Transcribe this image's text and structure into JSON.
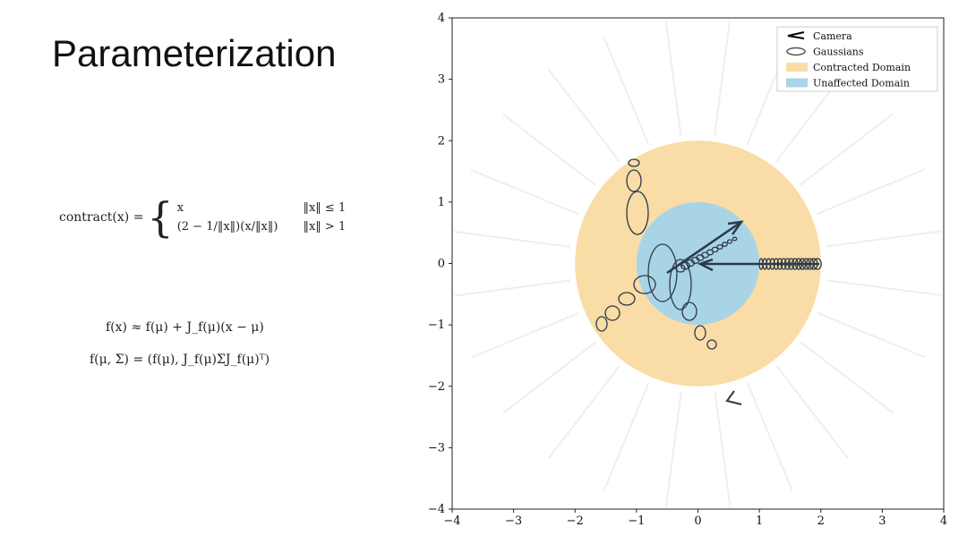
{
  "slide": {
    "title": "Parameterization",
    "equations": {
      "contract_lhs": "contract(x) =",
      "case1": "x",
      "cond1": "‖x‖ ≤ 1",
      "case2": "(2 − 1/‖x‖)(x/‖x‖)",
      "cond2": "‖x‖ > 1",
      "taylor": "f(x) ≈ f(μ) + J_f(μ)(x − μ)",
      "gaussian": "f(μ, Σ) = (f(μ), J_f(μ)ΣJ_f(μ)ᵀ)"
    }
  },
  "chart_data": {
    "type": "domain-plot",
    "xlim": [
      -4,
      4
    ],
    "ylim": [
      -4,
      4
    ],
    "xticks": [
      {
        "value": -4,
        "label": "−4"
      },
      {
        "value": -3,
        "label": "−3"
      },
      {
        "value": -2,
        "label": "−2"
      },
      {
        "value": -1,
        "label": "−1"
      },
      0,
      1,
      2,
      3,
      4
    ],
    "yticks": [
      {
        "value": -4,
        "label": "−4"
      },
      {
        "value": -3,
        "label": "−3"
      },
      {
        "value": -2,
        "label": "−2"
      },
      {
        "value": -1,
        "label": "−1"
      },
      0,
      1,
      2,
      3,
      4
    ],
    "legend_position": "upper right",
    "legend": [
      "Camera",
      "Gaussians"
    ],
    "domains": [
      {
        "name": "Contracted Domain",
        "radius": 2,
        "color": "#f9dca6"
      },
      {
        "name": "Unaffected Domain",
        "radius": 1,
        "color": "#a9d4e6"
      }
    ]
  }
}
